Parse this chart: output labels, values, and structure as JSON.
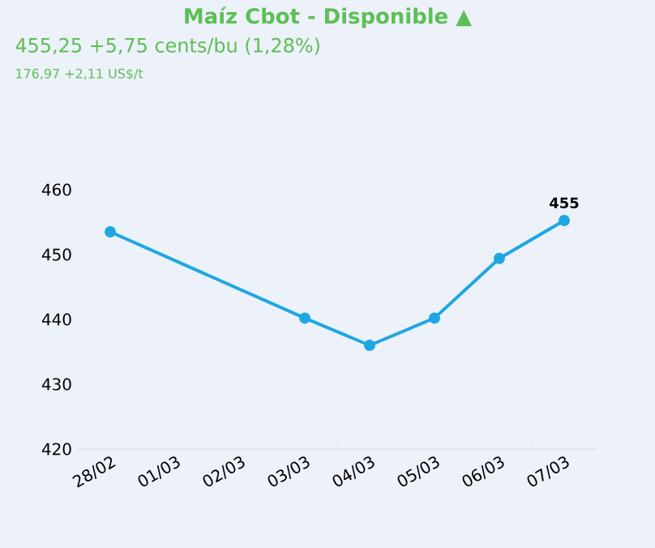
{
  "chart_data": {
    "type": "line",
    "title": "Maíz Cbot - Disponible ▲",
    "subtitle": "455,25 +5,75 cents/bu (1,28%)",
    "annotations": [
      "176,97 +2,11 US$/t"
    ],
    "categories": [
      "28/02",
      "01/03",
      "02/03",
      "03/03",
      "04/03",
      "05/03",
      "06/03",
      "07/03"
    ],
    "series": [
      {
        "color": "#1ea7e1",
        "values": [
          453.5,
          null,
          null,
          440.2,
          436,
          440.2,
          449.4,
          455.25
        ],
        "value_labels": [
          null,
          null,
          null,
          null,
          null,
          null,
          null,
          "455"
        ]
      }
    ],
    "ylim": [
      420,
      460
    ],
    "yticks": [
      420,
      430,
      440,
      450,
      460
    ],
    "grid": "y",
    "marker": "circle",
    "line_style": "solid"
  }
}
